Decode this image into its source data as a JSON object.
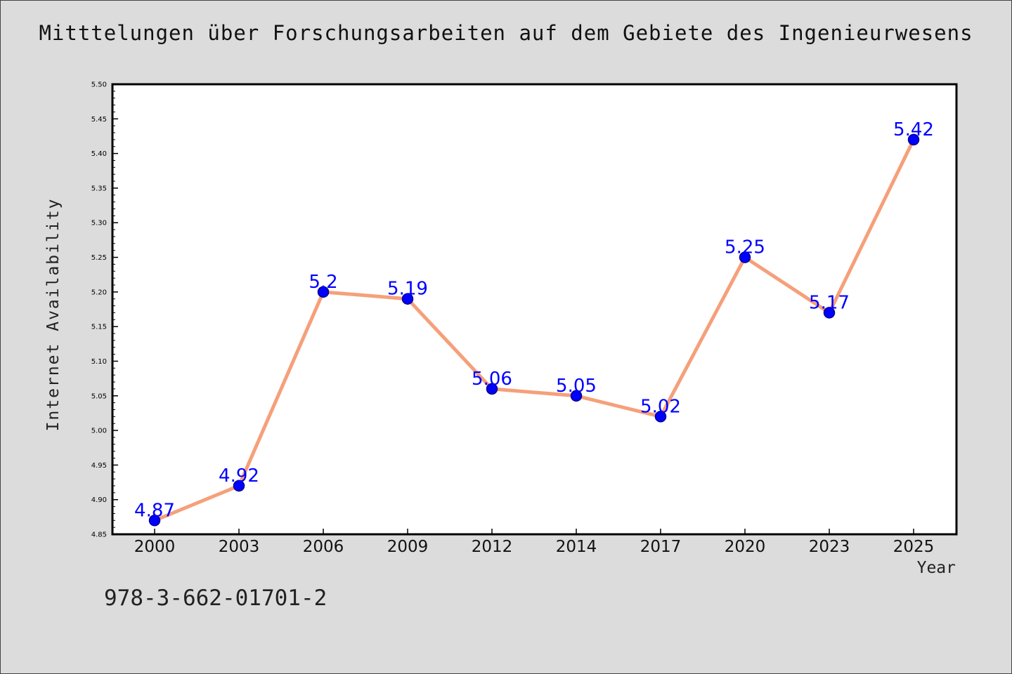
{
  "chart_data": {
    "type": "line",
    "title": "Mitttelungen über Forschungsarbeiten auf dem Gebiete des Ingenieurwesens",
    "xlabel": "Year",
    "ylabel": "Internet Availability",
    "categories": [
      "2000",
      "2003",
      "2006",
      "2009",
      "2012",
      "2014",
      "2017",
      "2020",
      "2023",
      "2025"
    ],
    "values": [
      4.87,
      4.92,
      5.2,
      5.19,
      5.06,
      5.05,
      5.02,
      5.25,
      5.17,
      5.42
    ],
    "data_labels": [
      "4.87",
      "4.92",
      "5.2",
      "5.19",
      "5.06",
      "5.05",
      "5.02",
      "5.25",
      "5.17",
      "5.42"
    ],
    "ylim": [
      4.85,
      5.5
    ],
    "yticks": [
      "4.85",
      "4.90",
      "4.95",
      "5.00",
      "5.05",
      "5.10",
      "5.15",
      "5.20",
      "5.25",
      "5.30",
      "5.35",
      "5.40",
      "5.45",
      "5.50"
    ],
    "grid": false,
    "legend": "none",
    "colors": {
      "line": "#f5a07a",
      "marker": "#0000ff",
      "marker_edge": "#00008b",
      "data_label": "#0000ff",
      "background": "#dcdcdc",
      "plot_area": "#ffffff"
    }
  },
  "footer_code": "978-3-662-01701-2"
}
